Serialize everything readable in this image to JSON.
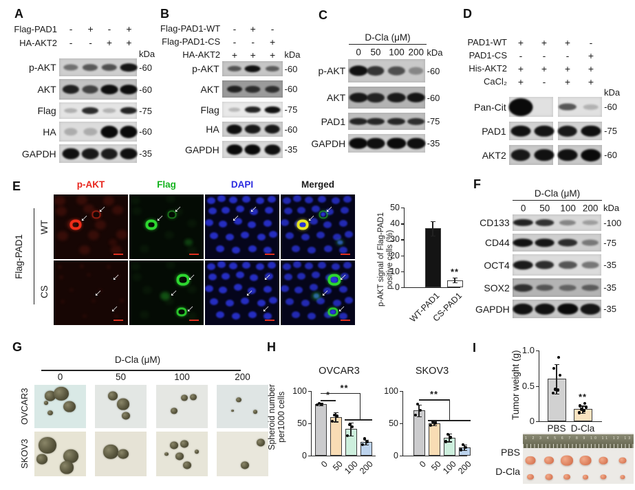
{
  "figure": {
    "panels": {
      "A": {
        "label": "A",
        "kda": "kDa",
        "conditions": [
          {
            "name": "Flag-PAD1",
            "symbols": [
              "-",
              "+",
              "-",
              "+"
            ]
          },
          {
            "name": "HA-AKT2",
            "symbols": [
              "-",
              "-",
              "+",
              "+"
            ]
          }
        ],
        "blots": [
          {
            "label": "p-AKT",
            "marker": "-60",
            "bg": "#cfcfcf",
            "bands": [
              0.35,
              0.5,
              0.55,
              0.92
            ]
          },
          {
            "label": "AKT",
            "marker": "-60",
            "bg": "#c3c3c3",
            "bands": [
              0.85,
              0.62,
              0.97,
              0.97
            ]
          },
          {
            "label": "Flag",
            "marker": "-75",
            "bg": "#e4e4e4",
            "bands": [
              0.05,
              0.8,
              0.03,
              0.85
            ]
          },
          {
            "label": "HA",
            "marker": "-60",
            "bg": "#dcdcdc",
            "bands": [
              0.03,
              0.03,
              1,
              1
            ],
            "fat": 1
          },
          {
            "label": "GAPDH",
            "marker": "-35",
            "bg": "#d6d6d6",
            "bands": [
              0.96,
              0.9,
              0.88,
              0.96
            ],
            "fat": 1
          }
        ]
      },
      "B": {
        "label": "B",
        "kda": "kDa",
        "conditions": [
          {
            "name": "Flag-PAD1-WT",
            "symbols": [
              "-",
              "+",
              "-"
            ]
          },
          {
            "name": "Flag-PAD1-CS",
            "symbols": [
              "-",
              "-",
              "+"
            ]
          },
          {
            "name": "HA-AKT2",
            "symbols": [
              "+",
              "+",
              "+"
            ],
            "kda_inline": true
          }
        ],
        "blots": [
          {
            "label": "p-AKT",
            "marker": "-60",
            "bg": "#c6c6c6",
            "bands": [
              0.5,
              0.95,
              0.45
            ]
          },
          {
            "label": "AKT",
            "marker": "-60",
            "bg": "#9b9b9b",
            "bands": [
              0.8,
              0.7,
              0.68
            ]
          },
          {
            "label": "Flag",
            "marker": "-75",
            "bg": "#e9e9e9",
            "bands": [
              0.03,
              0.85,
              0.95
            ]
          },
          {
            "label": "HA",
            "marker": "-60",
            "bg": "#cfcfcf",
            "bands": [
              0.96,
              0.9,
              0.9
            ],
            "fat": 1
          },
          {
            "label": "GAPDH",
            "marker": "-35",
            "bg": "#d9d9d9",
            "bands": [
              1,
              1,
              0.96
            ],
            "fat": 1
          }
        ]
      },
      "C": {
        "label": "C",
        "kda": "kDa",
        "treatment": "D-Cla (μM)",
        "doses": [
          "0",
          "50",
          "100",
          "200"
        ],
        "blots": [
          {
            "label": "p-AKT",
            "marker": "-60",
            "bg": "#c9c9c9",
            "bands": [
              0.95,
              0.72,
              0.55,
              0.18
            ]
          },
          {
            "label": "AKT",
            "marker": "-60",
            "bg": "#b3b3b3",
            "bands": [
              0.9,
              0.82,
              0.88,
              0.92
            ]
          },
          {
            "label": "PAD1",
            "marker": "-75",
            "bg": "#bfbfbf",
            "bands": [
              0.82,
              0.8,
              0.8,
              0.75
            ]
          },
          {
            "label": "GAPDH",
            "marker": "-35",
            "bg": "#cfcfcf",
            "bands": [
              1,
              0.96,
              1,
              0.96
            ],
            "fat": 1
          }
        ]
      },
      "D": {
        "label": "D",
        "kda": "kDa",
        "conditions": [
          {
            "name": "PAD1-WT",
            "symbols": [
              "+",
              "+",
              "+",
              "-"
            ]
          },
          {
            "name": "PAD1-CS",
            "symbols": [
              "-",
              "-",
              "-",
              "+"
            ]
          },
          {
            "name": "His-AKT2",
            "symbols": [
              "+",
              "+",
              "+",
              "+"
            ]
          },
          {
            "name": "CaCl₂",
            "symbols": [
              "+",
              "-",
              "+",
              "+"
            ]
          }
        ],
        "blots": [
          {
            "label": "Pan-Cit",
            "marker": "-60",
            "bg": "#e1e1e1",
            "bands": [
              1,
              0,
              0.55,
              0.02
            ],
            "big": [
              0
            ],
            "split": 1
          },
          {
            "label": "PAD1",
            "marker": "-75",
            "bg": "#d2d2d2",
            "bands": [
              0.95,
              0.93,
              0.9,
              0.96
            ],
            "fat": 1,
            "split": 1
          },
          {
            "label": "AKT2",
            "marker": "-60",
            "bg": "#c9c9c9",
            "bands": [
              0.9,
              0.95,
              0.95,
              1
            ],
            "fat": 1,
            "split": 1
          }
        ]
      },
      "E": {
        "label": "E",
        "columns": [
          {
            "label": "p-AKT",
            "color": "#e8251d"
          },
          {
            "label": "Flag",
            "color": "#14b31e"
          },
          {
            "label": "DAPI",
            "color": "#2b2be0"
          },
          {
            "label": "Merged",
            "color": "#1a1a1a"
          }
        ],
        "group_label": "Flag-PAD1",
        "rows": [
          "WT",
          "CS"
        ]
      },
      "F": {
        "label": "F",
        "kda": "kDa",
        "treatment": "D-Cla (μM)",
        "doses": [
          "0",
          "50",
          "100",
          "200"
        ],
        "blots": [
          {
            "label": "CD133",
            "marker": "-100",
            "bg": "#d8d8d8",
            "bands": [
              0.85,
              0.75,
              0.25,
              0.1
            ]
          },
          {
            "label": "CD44",
            "marker": "-75",
            "bg": "#cfcfcf",
            "bands": [
              0.95,
              0.92,
              0.78,
              0.3
            ]
          },
          {
            "label": "OCT4",
            "marker": "-35",
            "bg": "#dcdcdc",
            "bands": [
              0.9,
              0.78,
              0.55,
              0.35
            ]
          },
          {
            "label": "SOX2",
            "marker": "-35",
            "bg": "#b4b4b4",
            "bands": [
              0.72,
              0.45,
              0.35,
              0.4
            ]
          },
          {
            "label": "GAPDH",
            "marker": "-35",
            "bg": "#c7c7c7",
            "bands": [
              0.95,
              0.95,
              1,
              0.92
            ],
            "fat": 1
          }
        ]
      },
      "G": {
        "label": "G",
        "treatment": "D-Cla  (μM)",
        "doses": [
          "0",
          "50",
          "100",
          "200"
        ],
        "rows": [
          "OVCAR3",
          "SKOV3"
        ]
      },
      "H": {
        "label": "H",
        "ylabel_lines": [
          "Spheroid number",
          "per1000 cells"
        ]
      },
      "I": {
        "label": "I",
        "photo_rows": [
          "PBS",
          "D-Cla"
        ],
        "ruler_numbers": "1 2 3 4 5 6 7 8 9 10 11 12 13 14"
      }
    }
  },
  "chart_data": [
    {
      "id": "flag_pad1_quant",
      "type": "bar",
      "ylabel": "p-AKT signal of Flag-PAD1 positive cells (%)",
      "ylabel_lines": [
        "p-AKT signal of Flag-PAD1",
        "positive cells (%)"
      ],
      "categories": [
        "WT-PAD1",
        "CS-PAD1"
      ],
      "values": [
        37,
        4.5
      ],
      "errors": [
        4.5,
        1.5
      ],
      "ylim": [
        0,
        50
      ],
      "yticks": [
        0,
        10,
        20,
        30,
        40,
        50
      ],
      "bar_colors": [
        "#141414",
        "#ffffff"
      ],
      "annotations": [
        {
          "text": "**",
          "target": "CS-PAD1"
        }
      ]
    },
    {
      "id": "spheroid_ovcar3",
      "type": "bar",
      "title": "OVCAR3",
      "ylabel": "Spheroid number per1000 cells",
      "categories": [
        "0",
        "50",
        "100",
        "200"
      ],
      "values": [
        80,
        60,
        41,
        21
      ],
      "errors": [
        2,
        7,
        10,
        4
      ],
      "points": [
        [
          79,
          80,
          81
        ],
        [
          53,
          61,
          63
        ],
        [
          31,
          45,
          48
        ],
        [
          17,
          21,
          26
        ]
      ],
      "ylim": [
        0,
        100
      ],
      "yticks": [
        0,
        50,
        100
      ],
      "bar_colors": [
        "#cbcbcd",
        "#f8dcb4",
        "#cdefdd",
        "#bcd3ed"
      ],
      "annotations": [
        {
          "text": "*",
          "compare": [
            "0",
            "50"
          ]
        },
        {
          "text": "**",
          "compare": [
            "0",
            "100+200"
          ]
        }
      ]
    },
    {
      "id": "spheroid_skov3",
      "type": "bar",
      "title": "SKOV3",
      "ylabel": "Spheroid number per1000 cells",
      "categories": [
        "0",
        "50",
        "100",
        "200"
      ],
      "values": [
        70,
        50,
        28,
        13
      ],
      "errors": [
        9,
        3,
        6,
        4
      ],
      "points": [
        [
          63,
          70,
          80
        ],
        [
          47,
          50,
          52
        ],
        [
          22,
          28,
          33
        ],
        [
          9,
          13,
          17
        ]
      ],
      "ylim": [
        0,
        100
      ],
      "yticks": [
        0,
        50,
        100
      ],
      "bar_colors": [
        "#cbcbcd",
        "#f8dcb4",
        "#cdefdd",
        "#bcd3ed"
      ],
      "annotations": [
        {
          "text": "**",
          "compare": [
            "0",
            "50+100+200"
          ]
        }
      ]
    },
    {
      "id": "tumor_weight",
      "type": "bar",
      "ylabel": "Tumor weight (g)",
      "categories": [
        "PBS",
        "D-Cla"
      ],
      "values": [
        0.6,
        0.17
      ],
      "errors": [
        0.21,
        0.05
      ],
      "points": [
        [
          0.4,
          0.44,
          0.45,
          0.65,
          0.75,
          0.9
        ],
        [
          0.12,
          0.15,
          0.17,
          0.2,
          0.22,
          0.25
        ]
      ],
      "ylim": [
        0,
        1.0
      ],
      "yticks": [
        0,
        0.5,
        1.0
      ],
      "bar_colors": [
        "#d1d1d1",
        "#fae3c1"
      ],
      "annotations": [
        {
          "text": "**",
          "target": "D-Cla"
        }
      ]
    }
  ]
}
